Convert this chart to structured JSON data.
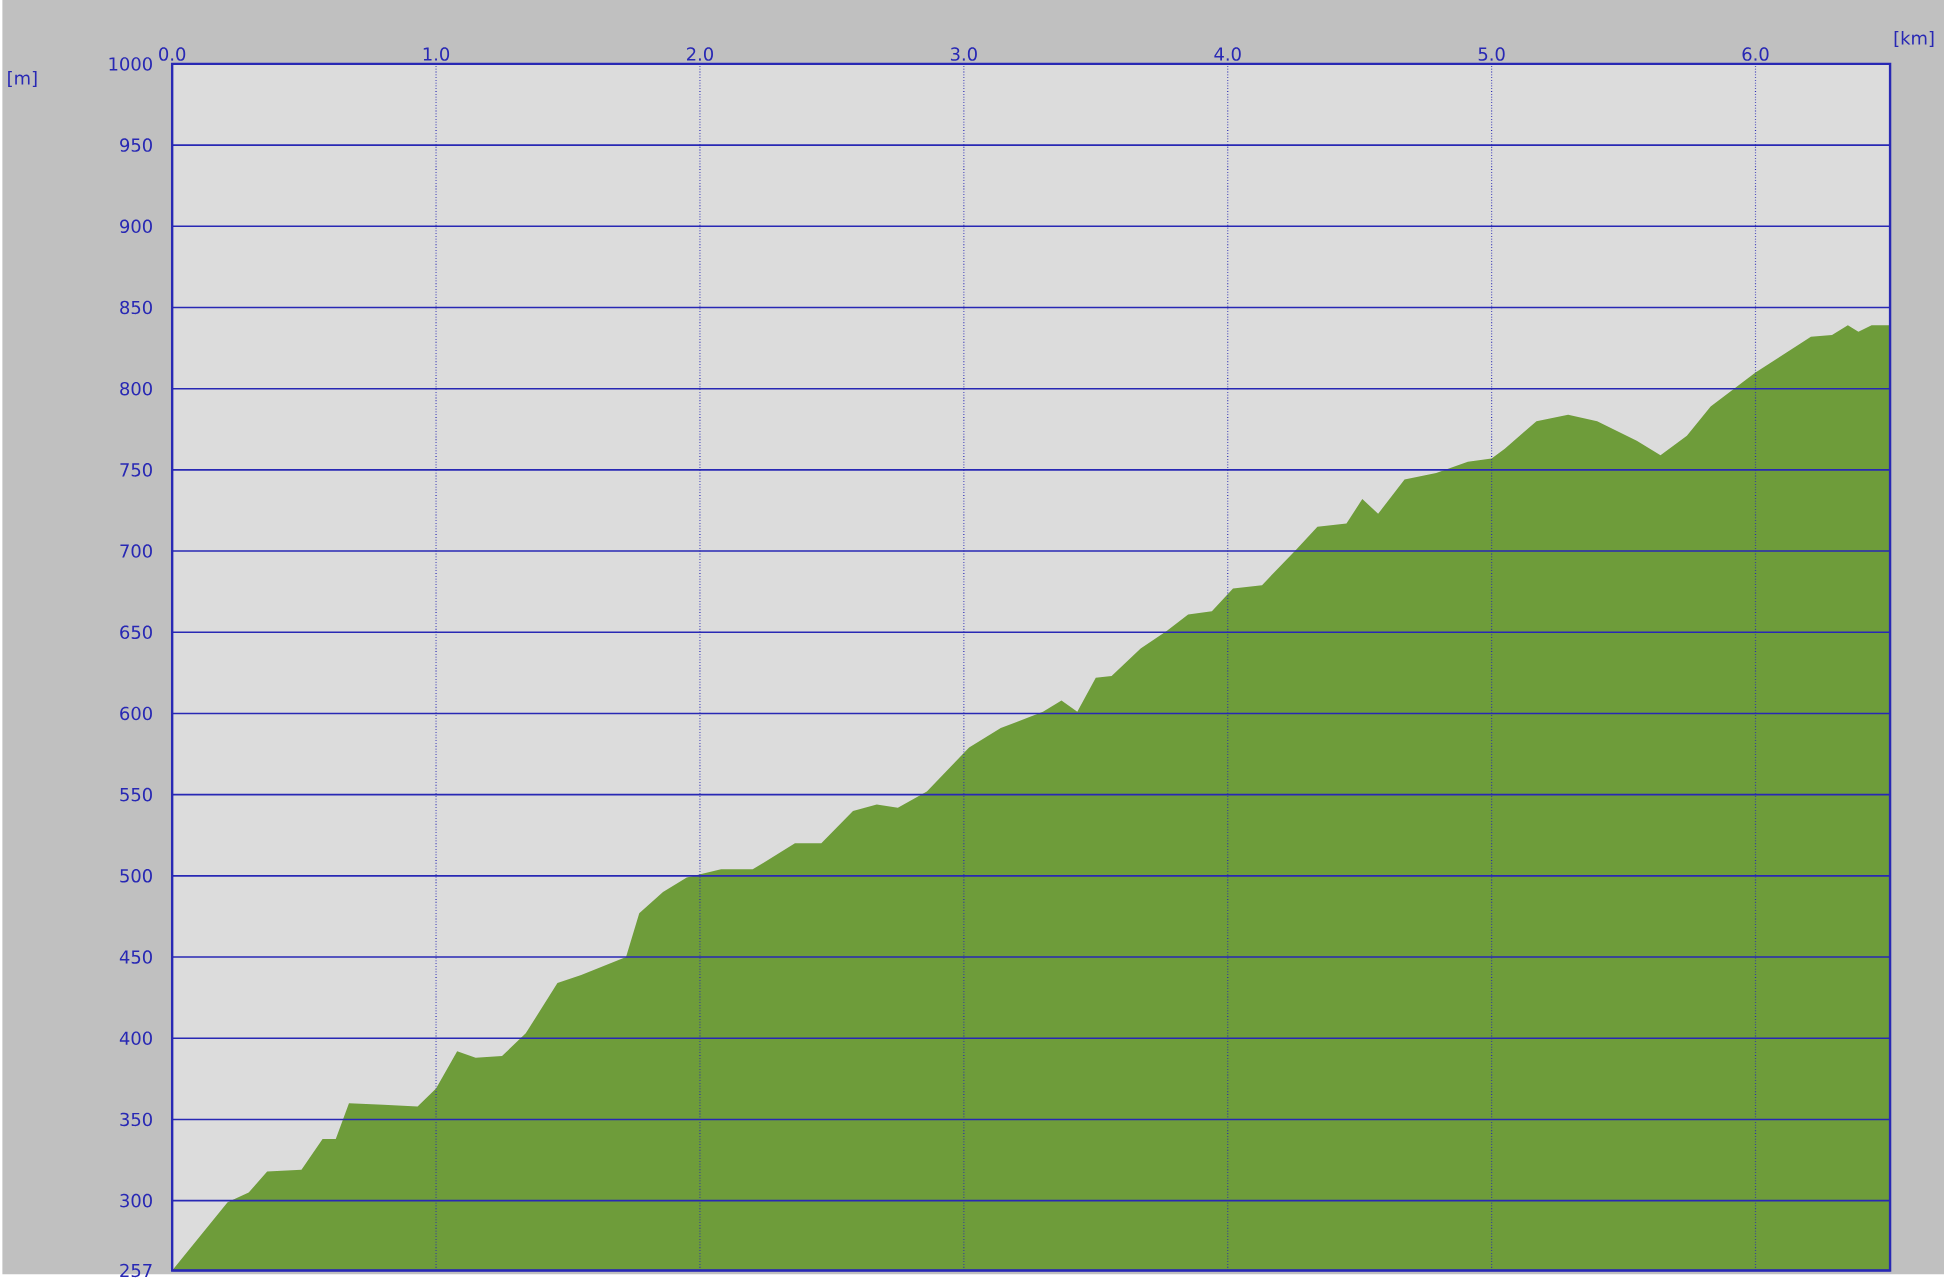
{
  "chart_data": {
    "type": "area",
    "xlabel": "[km]",
    "ylabel": "[m]",
    "color": "#6e9c3a",
    "x": [
      0,
      0.21,
      0.29,
      0.36,
      0.49,
      0.57,
      0.62,
      0.67,
      0.8,
      0.93,
      1.0,
      1.08,
      1.15,
      1.25,
      1.34,
      1.46,
      1.55,
      1.72,
      1.77,
      1.86,
      1.95,
      2.08,
      2.2,
      2.36,
      2.46,
      2.58,
      2.67,
      2.75,
      2.86,
      3.02,
      3.14,
      3.3,
      3.37,
      3.43,
      3.5,
      3.56,
      3.67,
      3.77,
      3.85,
      3.94,
      4.02,
      4.13,
      4.26,
      4.34,
      4.45,
      4.51,
      4.57,
      4.67,
      4.79,
      4.91,
      5.0,
      5.05,
      5.17,
      5.29,
      5.4,
      5.55,
      5.64,
      5.74,
      5.83,
      6.0,
      6.21,
      6.29,
      6.35,
      6.39,
      6.44,
      6.51
    ],
    "values": [
      257,
      299,
      305,
      318,
      319,
      338,
      338,
      360,
      359,
      358,
      369,
      392,
      388,
      389,
      403,
      434,
      439,
      450,
      477,
      490,
      499,
      504,
      504,
      520,
      520,
      540,
      544,
      542,
      552,
      579,
      591,
      601,
      608,
      601,
      622,
      623,
      640,
      651,
      661,
      663,
      677,
      679,
      701,
      715,
      717,
      732,
      723,
      744,
      748,
      755,
      757,
      763,
      780,
      784,
      780,
      768,
      759,
      771,
      789,
      810,
      832,
      833,
      839,
      835,
      839,
      839
    ],
    "xlim": [
      0,
      6.51
    ],
    "ylim": [
      257,
      1000
    ],
    "xticks": [
      {
        "value": 0,
        "label": "0.0"
      },
      {
        "value": 1,
        "label": "1.0"
      },
      {
        "value": 2,
        "label": "2.0"
      },
      {
        "value": 3,
        "label": "3.0"
      },
      {
        "value": 4,
        "label": "4.0"
      },
      {
        "value": 5,
        "label": "5.0"
      },
      {
        "value": 6,
        "label": "6.0"
      }
    ],
    "yticks": [
      257,
      300,
      350,
      400,
      450,
      500,
      550,
      600,
      650,
      700,
      750,
      800,
      850,
      900,
      950,
      1000
    ],
    "grid": true
  }
}
